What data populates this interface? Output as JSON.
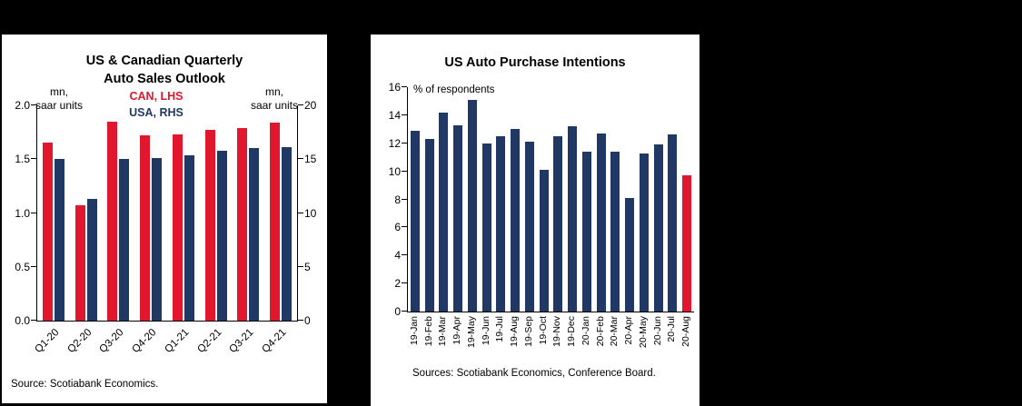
{
  "chart_data": [
    {
      "type": "bar",
      "title": "US & Canadian Quarterly\nAuto Sales Outlook",
      "left_axis_unit": "mn,\nsaar units",
      "right_axis_unit": "mn,\nsaar units",
      "categories": [
        "Q1-20",
        "Q2-20",
        "Q3-20",
        "Q4-20",
        "Q1-21",
        "Q2-21",
        "Q3-21",
        "Q4-21"
      ],
      "series": [
        {
          "name": "CAN, LHS",
          "axis": "left",
          "color": "#e1182d",
          "values": [
            1.65,
            1.07,
            1.85,
            1.72,
            1.73,
            1.77,
            1.79,
            1.84
          ]
        },
        {
          "name": "USA, RHS",
          "axis": "right",
          "color": "#1f3864",
          "values": [
            15.0,
            11.3,
            15.0,
            15.1,
            15.4,
            15.8,
            16.0,
            16.1
          ]
        }
      ],
      "left_axis": {
        "min": 0,
        "max": 2.0,
        "ticks": [
          0,
          0.5,
          1.0,
          1.5,
          2.0
        ],
        "tick_labels": [
          "0.0",
          "0.5",
          "1.0",
          "1.5",
          "2.0"
        ]
      },
      "right_axis": {
        "min": 0,
        "max": 20,
        "ticks": [
          0,
          5,
          10,
          15,
          20
        ],
        "tick_labels": [
          "0",
          "5",
          "10",
          "15",
          "20"
        ]
      },
      "legend_position": "top-center",
      "grid": false,
      "source": "Source: Scotiabank Economics."
    },
    {
      "type": "bar",
      "title": "US Auto Purchase Intentions",
      "annotation": "% of respondents",
      "categories": [
        "19-Jan",
        "19-Feb",
        "19-Mar",
        "19-Apr",
        "19-May",
        "19-Jun",
        "19-Jul",
        "19-Aug",
        "19-Sep",
        "19-Oct",
        "19-Nov",
        "19-Dec",
        "20-Jan",
        "20-Feb",
        "20-Mar",
        "20-Apr",
        "20-May",
        "20-Jun",
        "20-Jul",
        "20-Aug"
      ],
      "values": [
        12.9,
        12.3,
        14.2,
        13.3,
        15.1,
        12.0,
        12.5,
        13.0,
        12.1,
        10.1,
        12.5,
        13.2,
        11.4,
        12.7,
        11.4,
        8.1,
        11.3,
        11.9,
        12.6,
        9.7
      ],
      "bar_color": "#1f3864",
      "highlight_color": "#e1182d",
      "highlight_index": 19,
      "ylim": [
        0,
        16
      ],
      "yticks": [
        0,
        2,
        4,
        6,
        8,
        10,
        12,
        14,
        16
      ],
      "grid": false,
      "source": "Sources: Scotiabank Economics, Conference Board."
    }
  ]
}
